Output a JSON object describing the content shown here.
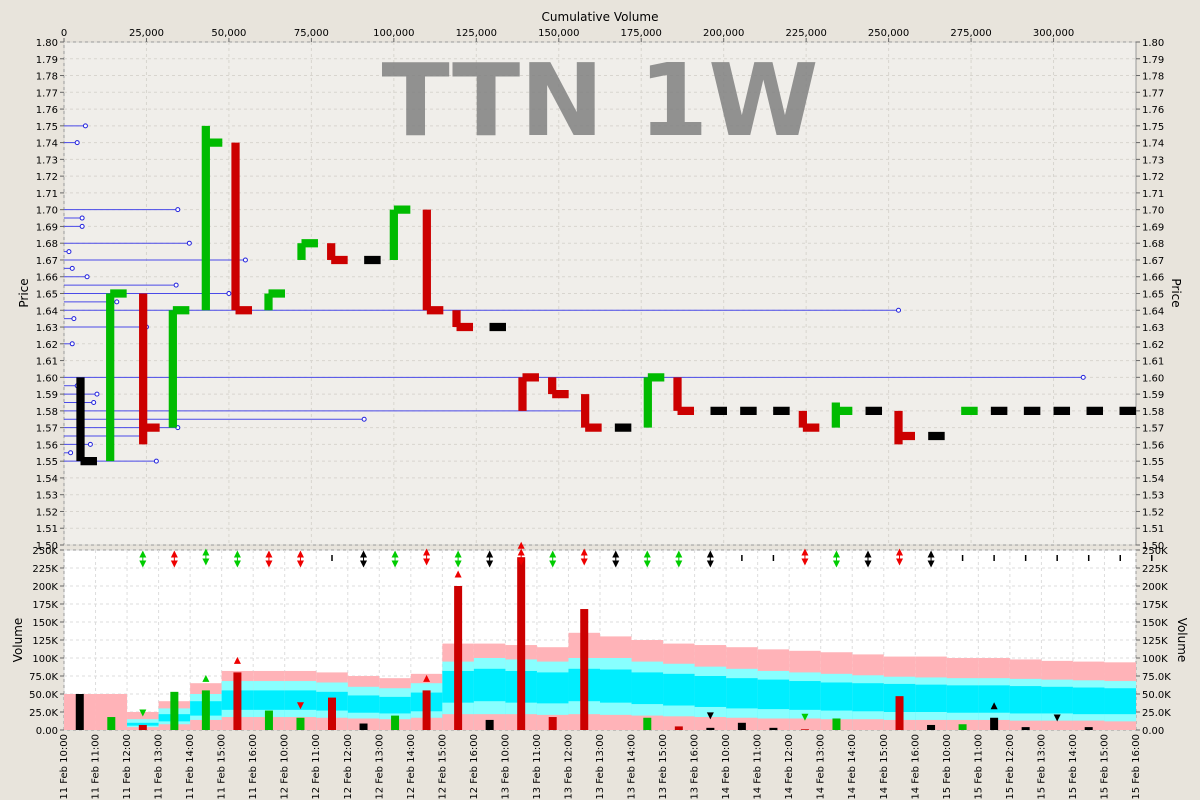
{
  "chart_data": [
    {
      "type": "bar",
      "title": "TTN 1W",
      "top_axis_label": "Cumulative Volume",
      "ylabel": "Price",
      "ylim": [
        1.5,
        1.8
      ],
      "y_ticks": [
        "1.50",
        "1.51",
        "1.52",
        "1.53",
        "1.54",
        "1.55",
        "1.56",
        "1.57",
        "1.58",
        "1.59",
        "1.60",
        "1.61",
        "1.62",
        "1.63",
        "1.64",
        "1.65",
        "1.66",
        "1.67",
        "1.68",
        "1.69",
        "1.70",
        "1.71",
        "1.72",
        "1.73",
        "1.74",
        "1.75",
        "1.76",
        "1.77",
        "1.78",
        "1.79",
        "1.80"
      ],
      "xlim": [
        0,
        325000
      ],
      "x_ticks": [
        "0",
        "25,000",
        "50,000",
        "75,000",
        "100,000",
        "125,000",
        "150,000",
        "175,000",
        "200,000",
        "225,000",
        "250,000",
        "275,000",
        "300,000"
      ],
      "price_bars": [
        {
          "x0": 5000,
          "x1": 10000,
          "open": 1.55,
          "high": 1.6,
          "low": 1.55,
          "close": 1.55,
          "color": "#000000"
        },
        {
          "x0": 14000,
          "x1": 19000,
          "open": 1.56,
          "high": 1.65,
          "low": 1.55,
          "close": 1.65,
          "color": "#00bb00"
        },
        {
          "x0": 24000,
          "x1": 29000,
          "open": 1.65,
          "high": 1.65,
          "low": 1.56,
          "close": 1.57,
          "color": "#cc0000"
        },
        {
          "x0": 33000,
          "x1": 38000,
          "open": 1.57,
          "high": 1.64,
          "low": 1.57,
          "close": 1.64,
          "color": "#00bb00"
        },
        {
          "x0": 43000,
          "x1": 48000,
          "open": 1.64,
          "high": 1.75,
          "low": 1.64,
          "close": 1.74,
          "color": "#00bb00"
        },
        {
          "x0": 52000,
          "x1": 57000,
          "open": 1.74,
          "high": 1.74,
          "low": 1.64,
          "close": 1.64,
          "color": "#cc0000"
        },
        {
          "x0": 62000,
          "x1": 67000,
          "open": 1.64,
          "high": 1.65,
          "low": 1.64,
          "close": 1.65,
          "color": "#00bb00"
        },
        {
          "x0": 72000,
          "x1": 77000,
          "open": 1.67,
          "high": 1.68,
          "low": 1.67,
          "close": 1.68,
          "color": "#00bb00"
        },
        {
          "x0": 81000,
          "x1": 86000,
          "open": 1.68,
          "high": 1.68,
          "low": 1.67,
          "close": 1.67,
          "color": "#cc0000"
        },
        {
          "x0": 91000,
          "x1": 96000,
          "open": 1.67,
          "high": 1.67,
          "low": 1.67,
          "close": 1.67,
          "color": "#000000"
        },
        {
          "x0": 100000,
          "x1": 105000,
          "open": 1.67,
          "high": 1.7,
          "low": 1.67,
          "close": 1.7,
          "color": "#00bb00"
        },
        {
          "x0": 110000,
          "x1": 115000,
          "open": 1.7,
          "high": 1.7,
          "low": 1.64,
          "close": 1.64,
          "color": "#cc0000"
        },
        {
          "x0": 119000,
          "x1": 124000,
          "open": 1.64,
          "high": 1.64,
          "low": 1.63,
          "close": 1.63,
          "color": "#cc0000"
        },
        {
          "x0": 129000,
          "x1": 134000,
          "open": 1.63,
          "high": 1.63,
          "low": 1.63,
          "close": 1.63,
          "color": "#000000"
        },
        {
          "x0": 139000,
          "x1": 144000,
          "open": 1.58,
          "high": 1.6,
          "low": 1.58,
          "close": 1.6,
          "color": "#cc0000"
        },
        {
          "x0": 148000,
          "x1": 153000,
          "open": 1.6,
          "high": 1.6,
          "low": 1.59,
          "close": 1.59,
          "color": "#cc0000"
        },
        {
          "x0": 158000,
          "x1": 163000,
          "open": 1.59,
          "high": 1.59,
          "low": 1.57,
          "close": 1.57,
          "color": "#cc0000"
        },
        {
          "x0": 167000,
          "x1": 172000,
          "open": 1.57,
          "high": 1.57,
          "low": 1.57,
          "close": 1.57,
          "color": "#000000"
        },
        {
          "x0": 177000,
          "x1": 182000,
          "open": 1.57,
          "high": 1.6,
          "low": 1.57,
          "close": 1.6,
          "color": "#00bb00"
        },
        {
          "x0": 186000,
          "x1": 191000,
          "open": 1.6,
          "high": 1.6,
          "low": 1.58,
          "close": 1.58,
          "color": "#cc0000"
        },
        {
          "x0": 196000,
          "x1": 201000,
          "open": 1.58,
          "high": 1.58,
          "low": 1.58,
          "close": 1.58,
          "color": "#000000"
        },
        {
          "x0": 205000,
          "x1": 210000,
          "open": 1.58,
          "high": 1.58,
          "low": 1.58,
          "close": 1.58,
          "color": "#000000"
        },
        {
          "x0": 215000,
          "x1": 220000,
          "open": 1.58,
          "high": 1.58,
          "low": 1.58,
          "close": 1.58,
          "color": "#000000"
        },
        {
          "x0": 224000,
          "x1": 229000,
          "open": 1.58,
          "high": 1.58,
          "low": 1.57,
          "close": 1.57,
          "color": "#cc0000"
        },
        {
          "x0": 234000,
          "x1": 239000,
          "open": 1.57,
          "high": 1.585,
          "low": 1.57,
          "close": 1.58,
          "color": "#00bb00"
        },
        {
          "x0": 243000,
          "x1": 248000,
          "open": 1.58,
          "high": 1.58,
          "low": 1.58,
          "close": 1.58,
          "color": "#000000"
        },
        {
          "x0": 253000,
          "x1": 258000,
          "open": 1.58,
          "high": 1.58,
          "low": 1.56,
          "close": 1.565,
          "color": "#cc0000"
        },
        {
          "x0": 262000,
          "x1": 267000,
          "open": 1.565,
          "high": 1.565,
          "low": 1.565,
          "close": 1.565,
          "color": "#000000"
        },
        {
          "x0": 272000,
          "x1": 277000,
          "open": 1.58,
          "high": 1.58,
          "low": 1.58,
          "close": 1.58,
          "color": "#00bb00"
        },
        {
          "x0": 281000,
          "x1": 286000,
          "open": 1.58,
          "high": 1.58,
          "low": 1.58,
          "close": 1.58,
          "color": "#000000"
        },
        {
          "x0": 291000,
          "x1": 296000,
          "open": 1.58,
          "high": 1.58,
          "low": 1.58,
          "close": 1.58,
          "color": "#000000"
        },
        {
          "x0": 300000,
          "x1": 305000,
          "open": 1.58,
          "high": 1.58,
          "low": 1.58,
          "close": 1.58,
          "color": "#000000"
        },
        {
          "x0": 310000,
          "x1": 315000,
          "open": 1.58,
          "high": 1.58,
          "low": 1.58,
          "close": 1.58,
          "color": "#000000"
        },
        {
          "x0": 320000,
          "x1": 325000,
          "open": 1.58,
          "high": 1.58,
          "low": 1.58,
          "close": 1.58,
          "color": "#000000"
        }
      ],
      "volume_at_price": [
        {
          "price": 1.75,
          "volume": 6500
        },
        {
          "price": 1.74,
          "volume": 4000
        },
        {
          "price": 1.7,
          "volume": 34500
        },
        {
          "price": 1.695,
          "volume": 5500
        },
        {
          "price": 1.69,
          "volume": 5500
        },
        {
          "price": 1.68,
          "volume": 38000
        },
        {
          "price": 1.675,
          "volume": 1500
        },
        {
          "price": 1.67,
          "volume": 55000
        },
        {
          "price": 1.665,
          "volume": 2500
        },
        {
          "price": 1.66,
          "volume": 7000
        },
        {
          "price": 1.655,
          "volume": 34000
        },
        {
          "price": 1.65,
          "volume": 50000
        },
        {
          "price": 1.645,
          "volume": 16000
        },
        {
          "price": 1.64,
          "volume": 253000
        },
        {
          "price": 1.635,
          "volume": 3000
        },
        {
          "price": 1.63,
          "volume": 25000
        },
        {
          "price": 1.62,
          "volume": 2500
        },
        {
          "price": 1.6,
          "volume": 309000
        },
        {
          "price": 1.595,
          "volume": 4000
        },
        {
          "price": 1.59,
          "volume": 10000
        },
        {
          "price": 1.585,
          "volume": 9000
        },
        {
          "price": 1.58,
          "volume": 158000
        },
        {
          "price": 1.575,
          "volume": 91000
        },
        {
          "price": 1.57,
          "volume": 34500
        },
        {
          "price": 1.565,
          "volume": 24000
        },
        {
          "price": 1.56,
          "volume": 8000
        },
        {
          "price": 1.555,
          "volume": 2000
        },
        {
          "price": 1.55,
          "volume": 28000
        }
      ]
    },
    {
      "type": "bar",
      "ylabel": "Volume",
      "ylim": [
        0,
        250000
      ],
      "y_ticks": [
        "0.00",
        "25.0K",
        "50.0K",
        "75.0K",
        "100K",
        "125K",
        "150K",
        "175K",
        "200K",
        "225K",
        "250K"
      ],
      "categories": [
        "11 Feb 10:00",
        "11 Feb 11:00",
        "11 Feb 12:00",
        "11 Feb 13:00",
        "11 Feb 14:00",
        "11 Feb 15:00",
        "11 Feb 16:00",
        "12 Feb 10:00",
        "12 Feb 11:00",
        "12 Feb 12:00",
        "12 Feb 13:00",
        "12 Feb 14:00",
        "12 Feb 15:00",
        "12 Feb 16:00",
        "13 Feb 10:00",
        "13 Feb 11:00",
        "13 Feb 12:00",
        "13 Feb 13:00",
        "13 Feb 14:00",
        "13 Feb 15:00",
        "13 Feb 16:00",
        "14 Feb 10:00",
        "14 Feb 11:00",
        "14 Feb 12:00",
        "14 Feb 13:00",
        "14 Feb 14:00",
        "14 Feb 15:00",
        "14 Feb 16:00",
        "15 Feb 10:00",
        "15 Feb 11:00",
        "15 Feb 12:00",
        "15 Feb 13:00",
        "15 Feb 14:00",
        "15 Feb 15:00",
        "15 Feb 16:00"
      ],
      "bars": [
        {
          "v": 50000,
          "c": "#000000",
          "m": "none"
        },
        {
          "v": 18000,
          "c": "#00bb00",
          "m": "none"
        },
        {
          "v": 7000,
          "c": "#cc0000",
          "m": "down-green"
        },
        {
          "v": 53000,
          "c": "#00bb00",
          "m": "none"
        },
        {
          "v": 55000,
          "c": "#00bb00",
          "m": "up-green"
        },
        {
          "v": 80000,
          "c": "#cc0000",
          "m": "up-red"
        },
        {
          "v": 27000,
          "c": "#00bb00",
          "m": "none"
        },
        {
          "v": 17000,
          "c": "#00bb00",
          "m": "down-red"
        },
        {
          "v": 45000,
          "c": "#cc0000",
          "m": "none"
        },
        {
          "v": 9000,
          "c": "#000000",
          "m": "none"
        },
        {
          "v": 20000,
          "c": "#00bb00",
          "m": "none"
        },
        {
          "v": 55000,
          "c": "#cc0000",
          "m": "up-red"
        },
        {
          "v": 200000,
          "c": "#cc0000",
          "m": "up-red"
        },
        {
          "v": 14000,
          "c": "#000000",
          "m": "none"
        },
        {
          "v": 240000,
          "c": "#cc0000",
          "m": "up-red"
        },
        {
          "v": 18000,
          "c": "#cc0000",
          "m": "none"
        },
        {
          "v": 168000,
          "c": "#cc0000",
          "m": "none"
        },
        {
          "v": 0,
          "c": "#000000",
          "m": "none"
        },
        {
          "v": 17000,
          "c": "#00bb00",
          "m": "none"
        },
        {
          "v": 5000,
          "c": "#cc0000",
          "m": "none"
        },
        {
          "v": 3000,
          "c": "#000000",
          "m": "down-black"
        },
        {
          "v": 10000,
          "c": "#000000",
          "m": "none"
        },
        {
          "v": 3000,
          "c": "#000000",
          "m": "none"
        },
        {
          "v": 1000,
          "c": "#cc0000",
          "m": "down-green"
        },
        {
          "v": 16000,
          "c": "#00bb00",
          "m": "none"
        },
        {
          "v": 0,
          "c": "#000000",
          "m": "none"
        },
        {
          "v": 47000,
          "c": "#cc0000",
          "m": "none"
        },
        {
          "v": 7000,
          "c": "#000000",
          "m": "none"
        },
        {
          "v": 8000,
          "c": "#00bb00",
          "m": "none"
        },
        {
          "v": 17000,
          "c": "#000000",
          "m": "up-black"
        },
        {
          "v": 4000,
          "c": "#000000",
          "m": "none"
        },
        {
          "v": 0,
          "c": "#000000",
          "m": "down-black"
        },
        {
          "v": 4000,
          "c": "#000000",
          "m": "none"
        },
        {
          "v": 0,
          "c": "#000000",
          "m": "none"
        },
        {
          "v": 0,
          "c": "#000000",
          "m": "none"
        }
      ],
      "top_signals": [
        "",
        "",
        "gr-d",
        "rd-d",
        "gr-u",
        "gr-d",
        "rd-d",
        "rd-d",
        "tick",
        "bk-d",
        "gr-d",
        "rd-u",
        "gr-d",
        "bk-d",
        "rd-u",
        "gr-d",
        "rd-u",
        "bk-d",
        "gr-d",
        "gr-d",
        "bk-d",
        "tick",
        "tick",
        "rd-u",
        "gr-d",
        "bk-d",
        "rd-u",
        "bk-d",
        "tick",
        "tick",
        "tick",
        "tick",
        "tick",
        "tick",
        "tick"
      ],
      "bands": {
        "upper": [
          50000,
          50000,
          25000,
          40000,
          65000,
          82000,
          82000,
          82000,
          80000,
          75000,
          72000,
          78000,
          120000,
          120000,
          118000,
          115000,
          135000,
          130000,
          125000,
          120000,
          118000,
          115000,
          112000,
          110000,
          108000,
          105000,
          102000,
          102000,
          100000,
          100000,
          98000,
          96000,
          95000,
          94000,
          93000
        ],
        "cyan_top": [
          0,
          0,
          15000,
          30000,
          50000,
          68000,
          68000,
          68000,
          66000,
          60000,
          58000,
          65000,
          95000,
          100000,
          98000,
          95000,
          100000,
          100000,
          95000,
          92000,
          88000,
          85000,
          82000,
          80000,
          78000,
          76000,
          74000,
          73000,
          72000,
          72000,
          71000,
          70000,
          69000,
          68000,
          67000
        ],
        "cyan_mid_top": [
          0,
          0,
          10000,
          22000,
          40000,
          55000,
          55000,
          55000,
          53000,
          48000,
          46000,
          52000,
          82000,
          85000,
          82000,
          80000,
          85000,
          84000,
          80000,
          78000,
          75000,
          72000,
          70000,
          68000,
          66000,
          65000,
          64000,
          63000,
          62000,
          62000,
          61000,
          60000,
          59000,
          58000,
          57000
        ],
        "cyan_mid_bot": [
          0,
          0,
          6000,
          12000,
          20000,
          28000,
          28000,
          28000,
          27000,
          24000,
          23000,
          26000,
          38000,
          40000,
          38000,
          37000,
          40000,
          38000,
          36000,
          34000,
          32000,
          30000,
          29000,
          28000,
          27000,
          26000,
          25000,
          25000,
          24000,
          24000,
          23000,
          23000,
          22000,
          22000,
          21000
        ],
        "cyan_bot": [
          0,
          0,
          4000,
          8000,
          14000,
          18000,
          18000,
          18000,
          17000,
          16000,
          15000,
          17000,
          22000,
          22000,
          22000,
          21000,
          22000,
          21000,
          20000,
          19000,
          18000,
          17000,
          16000,
          16000,
          15000,
          15000,
          14000,
          14000,
          14000,
          14000,
          13000,
          13000,
          13000,
          12000,
          12000
        ]
      }
    }
  ]
}
